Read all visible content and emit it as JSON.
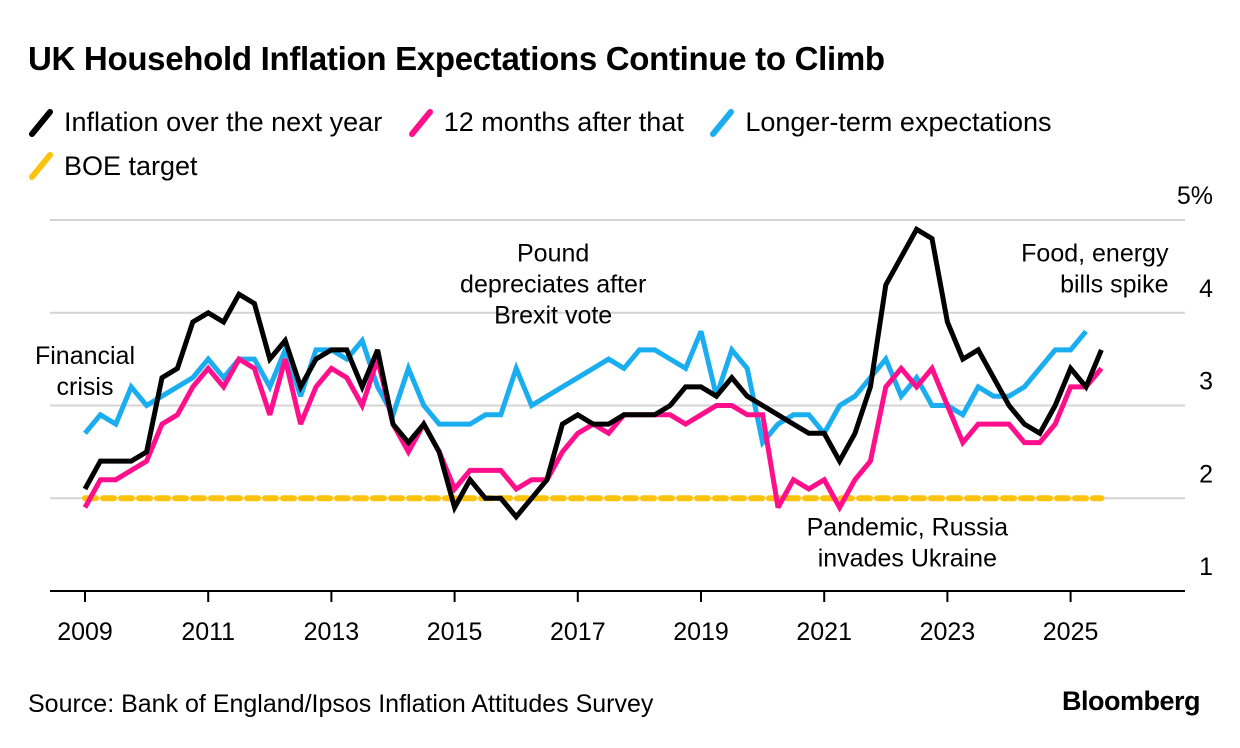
{
  "header": {
    "title": "UK Household Inflation Expectations Continue to Climb"
  },
  "legend": [
    {
      "label": "Inflation over the next year",
      "color": "#000000",
      "icon": "slash-line-icon"
    },
    {
      "label": "12 months after that",
      "color": "#ff0f8c",
      "icon": "slash-line-icon"
    },
    {
      "label": "Longer-term expectations",
      "color": "#1aaef0",
      "icon": "slash-line-icon"
    },
    {
      "label": "BOE target",
      "color": "#fcc30d",
      "icon": "slash-dashed-icon"
    }
  ],
  "footer": {
    "source": "Source: Bank of England/Ipsos Inflation Attitudes Survey",
    "logo": "Bloomberg"
  },
  "chart_data": {
    "type": "line",
    "title": "UK Household Inflation Expectations Continue to Climb",
    "xlabel": "",
    "ylabel": "",
    "x_start": 2009.0,
    "x_step": 0.25,
    "xlim": [
      2008.55,
      2026.7
    ],
    "ylim": [
      1,
      5
    ],
    "yticks": [
      1,
      2,
      3,
      4,
      5
    ],
    "ytick_labels": [
      "1",
      "2",
      "3",
      "4",
      "5%"
    ],
    "xticks": [
      2009,
      2011,
      2013,
      2015,
      2017,
      2019,
      2021,
      2023,
      2025
    ],
    "xtick_labels": [
      "2009",
      "2011",
      "2013",
      "2015",
      "2017",
      "2019",
      "2021",
      "2023",
      "2025"
    ],
    "grid": true,
    "legend_position": "top-left",
    "series": [
      {
        "name": "Inflation over the next year",
        "color": "#000000",
        "values": [
          2.1,
          2.4,
          2.4,
          2.4,
          2.5,
          3.3,
          3.4,
          3.9,
          4.0,
          3.9,
          4.2,
          4.1,
          3.5,
          3.7,
          3.2,
          3.5,
          3.6,
          3.6,
          3.2,
          3.6,
          2.8,
          2.6,
          2.8,
          2.5,
          1.9,
          2.2,
          2.0,
          2.0,
          1.8,
          2.0,
          2.2,
          2.8,
          2.9,
          2.8,
          2.8,
          2.9,
          2.9,
          2.9,
          3.0,
          3.2,
          3.2,
          3.1,
          3.3,
          3.1,
          3.0,
          2.9,
          2.8,
          2.7,
          2.7,
          2.4,
          2.7,
          3.2,
          4.3,
          4.6,
          4.9,
          4.8,
          3.9,
          3.5,
          3.6,
          3.3,
          3.0,
          2.8,
          2.7,
          3.0,
          3.4,
          3.2,
          3.6
        ]
      },
      {
        "name": "12 months after that",
        "color": "#ff0f8c",
        "values": [
          1.9,
          2.2,
          2.2,
          2.3,
          2.4,
          2.8,
          2.9,
          3.2,
          3.4,
          3.2,
          3.5,
          3.4,
          2.9,
          3.5,
          2.8,
          3.2,
          3.4,
          3.3,
          3.0,
          3.5,
          2.8,
          2.5,
          2.8,
          2.5,
          2.1,
          2.3,
          2.3,
          2.3,
          2.1,
          2.2,
          2.2,
          2.5,
          2.7,
          2.8,
          2.7,
          2.9,
          2.9,
          2.9,
          2.9,
          2.8,
          2.9,
          3.0,
          3.0,
          2.9,
          2.9,
          1.9,
          2.2,
          2.1,
          2.2,
          1.9,
          2.2,
          2.4,
          3.2,
          3.4,
          3.2,
          3.4,
          3.0,
          2.6,
          2.8,
          2.8,
          2.8,
          2.6,
          2.6,
          2.8,
          3.2,
          3.2,
          3.4
        ]
      },
      {
        "name": "Longer-term expectations",
        "color": "#1aaef0",
        "values": [
          2.7,
          2.9,
          2.8,
          3.2,
          3.0,
          3.1,
          3.2,
          3.3,
          3.5,
          3.3,
          3.5,
          3.5,
          3.2,
          3.6,
          3.1,
          3.6,
          3.6,
          3.5,
          3.7,
          3.2,
          2.9,
          3.4,
          3.0,
          2.8,
          2.8,
          2.8,
          2.9,
          2.9,
          3.4,
          3.0,
          3.1,
          3.2,
          3.3,
          3.4,
          3.5,
          3.4,
          3.6,
          3.6,
          3.5,
          3.4,
          3.8,
          3.1,
          3.6,
          3.4,
          2.6,
          2.8,
          2.9,
          2.9,
          2.7,
          3.0,
          3.1,
          3.3,
          3.5,
          3.1,
          3.3,
          3.0,
          3.0,
          2.9,
          3.2,
          3.1,
          3.1,
          3.2,
          3.4,
          3.6,
          3.6,
          3.8
        ]
      },
      {
        "name": "BOE target",
        "color": "#fcc30d",
        "dashed": true,
        "x_range": [
          2009.0,
          2025.5
        ],
        "values": [
          2.0,
          2.0
        ]
      }
    ],
    "annotations": [
      {
        "lines": [
          "Financial",
          "crisis"
        ],
        "x": 2009.0,
        "y": 3.45,
        "anchor": "middle"
      },
      {
        "lines": [
          "Pound",
          "depreciates after",
          "Brexit vote"
        ],
        "x": 2016.6,
        "y": 4.55,
        "anchor": "middle"
      },
      {
        "lines": [
          "Pandemic, Russia",
          "invades Ukraine"
        ],
        "x": 2022.35,
        "y": 1.6,
        "anchor": "middle"
      },
      {
        "lines": [
          "Food, energy",
          "bills spike"
        ],
        "x": 2025.55,
        "y": 4.55,
        "anchor": "end"
      }
    ]
  }
}
